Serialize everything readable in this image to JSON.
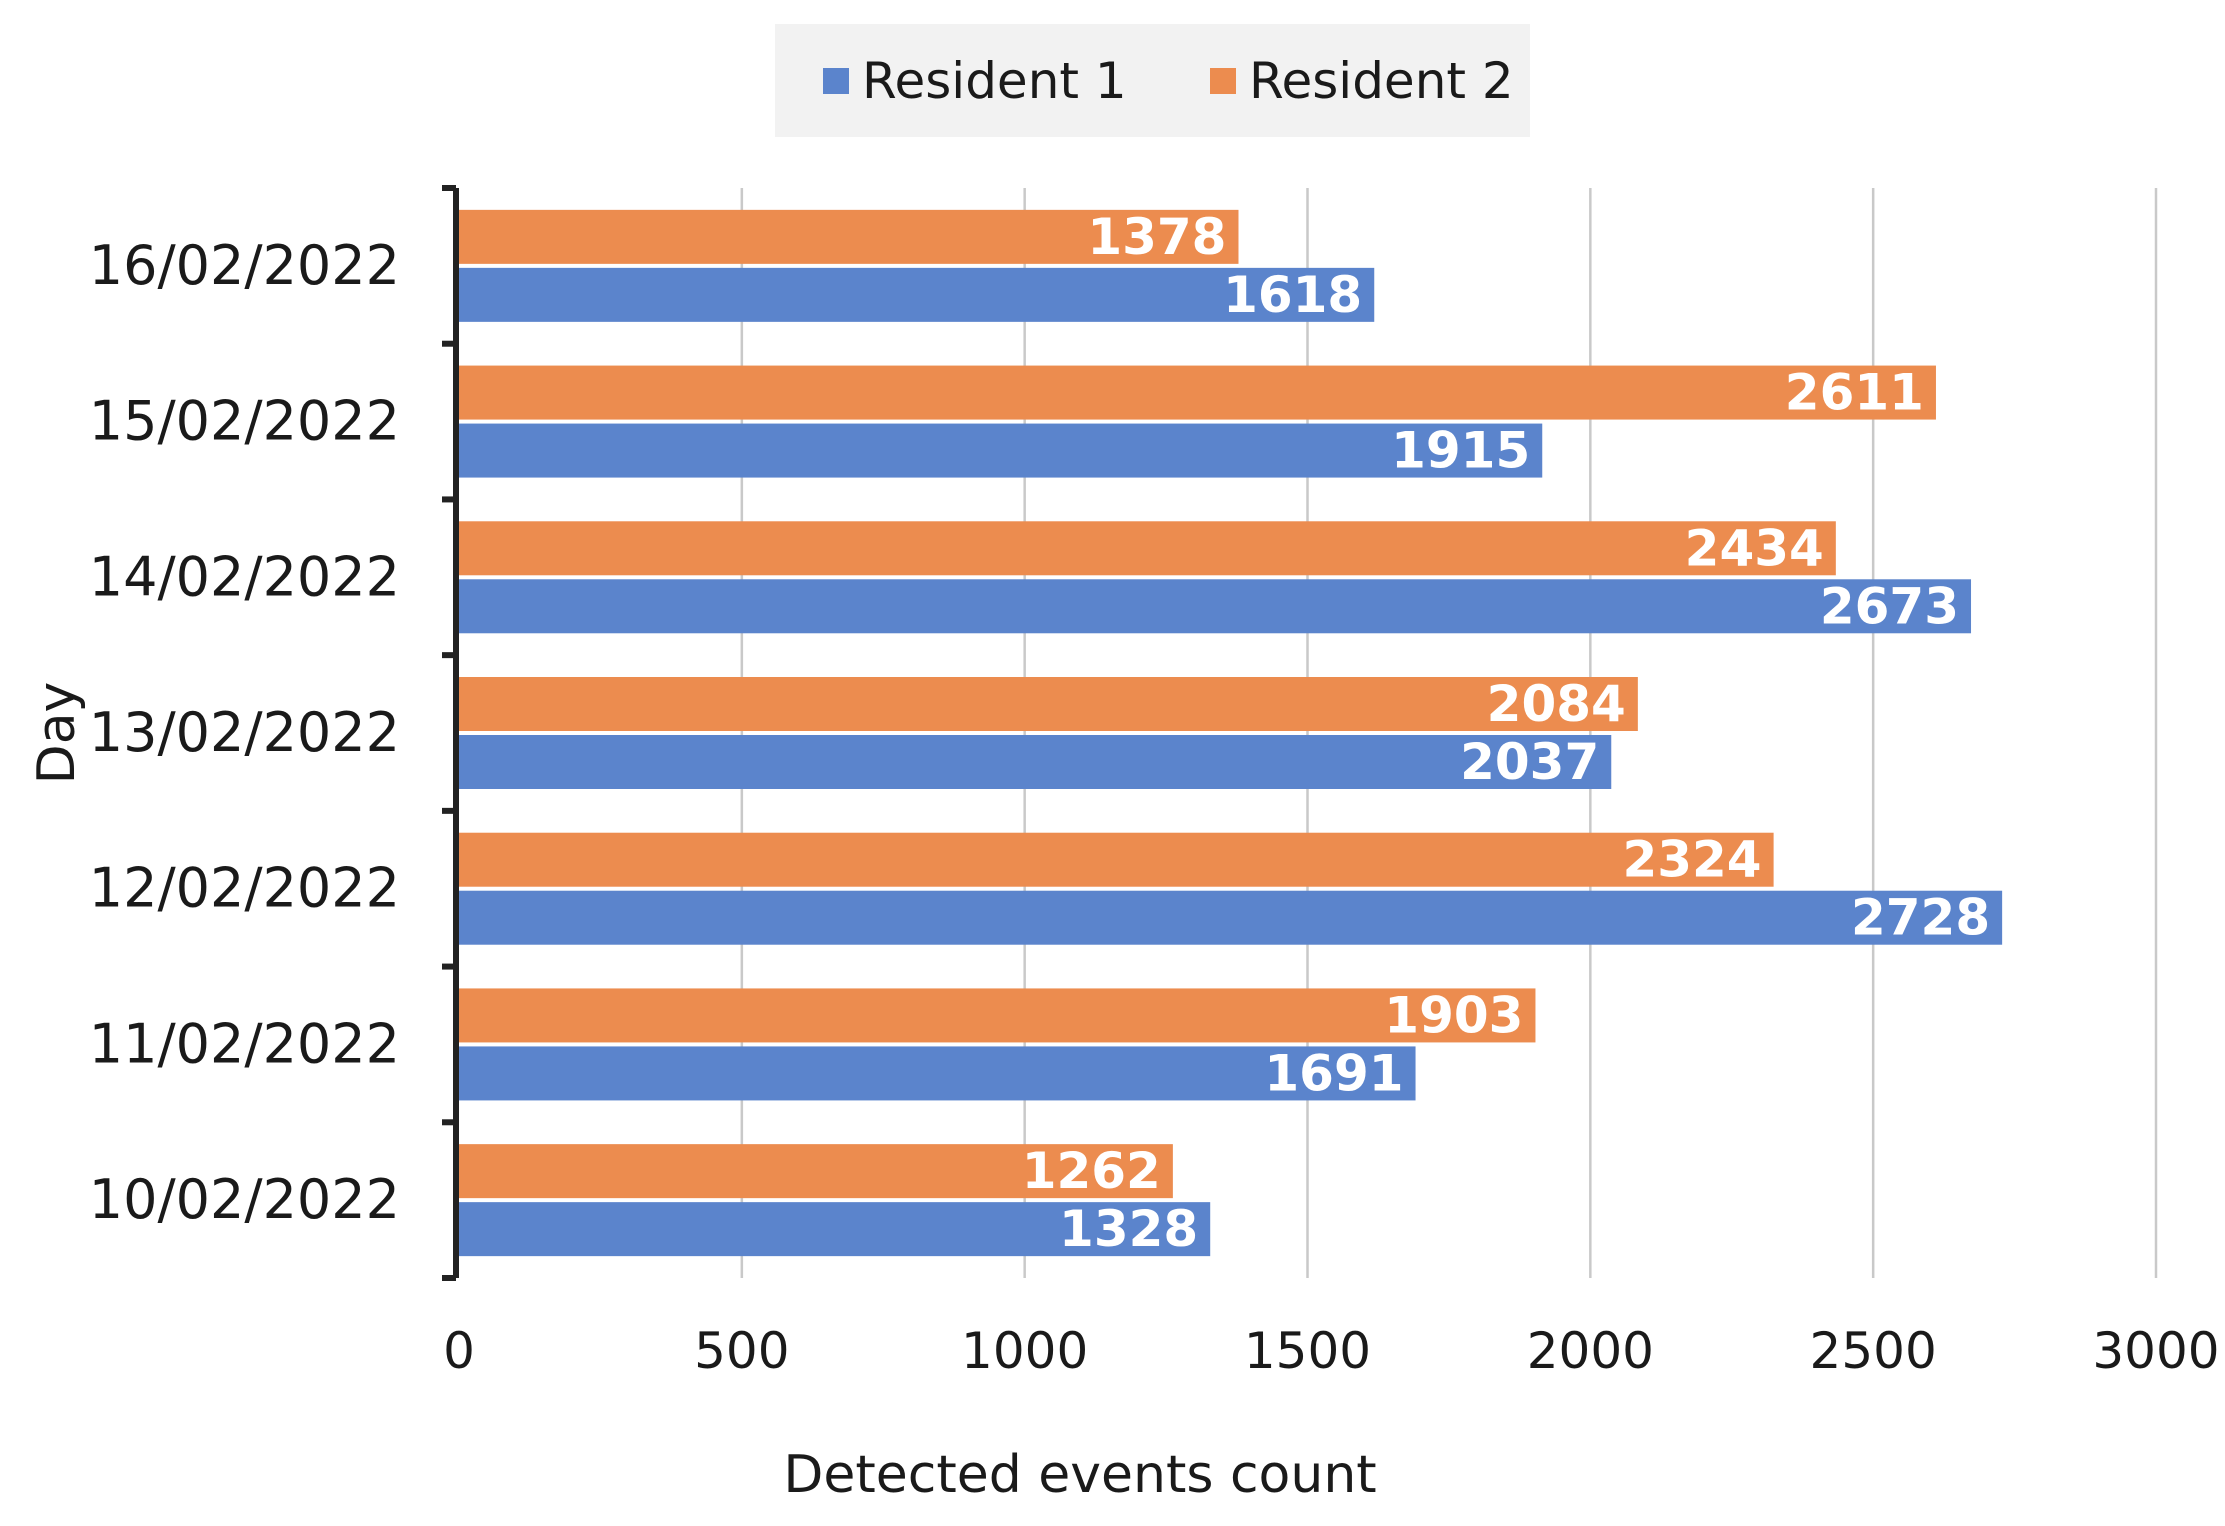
{
  "chart_data": {
    "type": "bar",
    "orientation": "horizontal",
    "title": "",
    "xlabel": "Detected events count",
    "ylabel": "Day",
    "xlim": [
      0,
      3000
    ],
    "xticks": [
      0,
      500,
      1000,
      1500,
      2000,
      2500,
      3000
    ],
    "grid": "vertical",
    "legend_position": "top-center",
    "categories": [
      "16/02/2022",
      "15/02/2022",
      "14/02/2022",
      "13/02/2022",
      "12/02/2022",
      "11/02/2022",
      "10/02/2022"
    ],
    "series": [
      {
        "name": "Resident 1",
        "color": "#5b84cc",
        "values": [
          1618,
          1915,
          2673,
          2037,
          2728,
          1691,
          1328
        ]
      },
      {
        "name": "Resident 2",
        "color": "#ec8c4f",
        "values": [
          1378,
          2611,
          2434,
          2084,
          2324,
          1903,
          1262
        ]
      }
    ]
  }
}
